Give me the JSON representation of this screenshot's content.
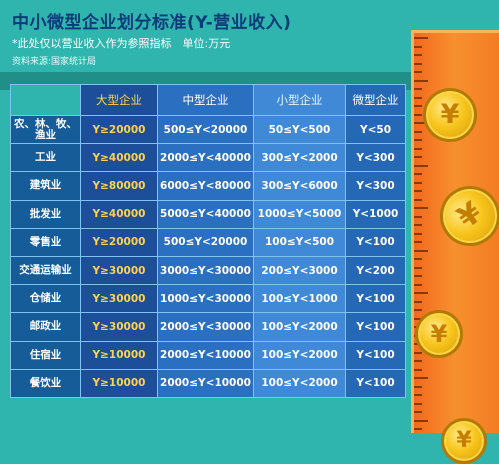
{
  "title": "中小微型企业划分标准(Y-营业收入)",
  "note": "*此处仅以营业收入作为参照指标　单位:万元",
  "source": "资料来源:国家统计局",
  "headers": [
    "大型企业",
    "中型企业",
    "小型企业",
    "微型企业"
  ],
  "rows": [
    {
      "cat": "农、林、牧、\n渔业",
      "large": "Y≥20000",
      "medium": "500≤Y<20000",
      "small": "50≤Y<500",
      "micro": "Y<50"
    },
    {
      "cat": "工业",
      "large": "Y≥40000",
      "medium": "2000≤Y<40000",
      "small": "300≤Y<2000",
      "micro": "Y<300"
    },
    {
      "cat": "建筑业",
      "large": "Y≥80000",
      "medium": "6000≤Y<80000",
      "small": "300≤Y<6000",
      "micro": "Y<300"
    },
    {
      "cat": "批发业",
      "large": "Y≥40000",
      "medium": "5000≤Y<40000",
      "small": "1000≤Y<5000",
      "micro": "Y<1000"
    },
    {
      "cat": "零售业",
      "large": "Y≥20000",
      "medium": "500≤Y<20000",
      "small": "100≤Y<500",
      "micro": "Y<100"
    },
    {
      "cat": "交通运输业",
      "large": "Y≥30000",
      "medium": "3000≤Y<30000",
      "small": "200≤Y<3000",
      "micro": "Y<200"
    },
    {
      "cat": "仓储业",
      "large": "Y≥30000",
      "medium": "1000≤Y<30000",
      "small": "100≤Y<1000",
      "micro": "Y<100"
    },
    {
      "cat": "邮政业",
      "large": "Y≥30000",
      "medium": "2000≤Y<30000",
      "small": "100≤Y<2000",
      "micro": "Y<100"
    },
    {
      "cat": "住宿业",
      "large": "Y≥10000",
      "medium": "2000≤Y<10000",
      "small": "100≤Y<2000",
      "micro": "Y<100"
    },
    {
      "cat": "餐饮业",
      "large": "Y≥10000",
      "medium": "2000≤Y<10000",
      "small": "100≤Y<2000",
      "micro": "Y<100"
    }
  ],
  "coin_symbol": "¥",
  "colors": {
    "background": "#2fb5ad",
    "title": "#0c3b7a",
    "large": "#ffd34e",
    "ruler": "#f7902f",
    "coin": "#f7c51c"
  },
  "icons": [
    "ruler-icon",
    "coin-icon"
  ]
}
